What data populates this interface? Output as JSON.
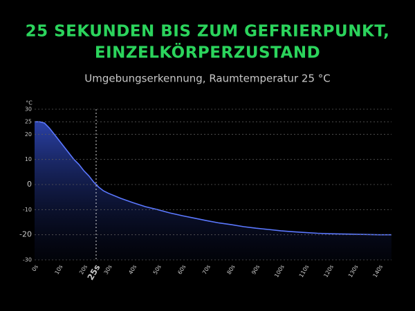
{
  "chart_data": {
    "type": "area",
    "title": [
      "25 SEKUNDEN BIS ZUM GEFRIERPUNKT,",
      "EINZELKÖRPERZUSTAND"
    ],
    "subtitle": "Umgebungserkennung, Raumtemperatur 25 °C",
    "y_label": "°C",
    "x": [
      0,
      2,
      4,
      6,
      8,
      10,
      12,
      14,
      16,
      18,
      20,
      22,
      24,
      25,
      26,
      28,
      30,
      35,
      40,
      45,
      50,
      55,
      60,
      65,
      70,
      75,
      80,
      85,
      90,
      95,
      100,
      105,
      110,
      115,
      120,
      125,
      130,
      135,
      140,
      145
    ],
    "values": [
      25,
      25,
      24.5,
      22.5,
      20,
      17.5,
      15,
      12.5,
      10,
      8,
      5.5,
      3.5,
      1,
      0,
      -1,
      -2.5,
      -3.5,
      -5.5,
      -7.2,
      -8.8,
      -10,
      -11.3,
      -12.4,
      -13.4,
      -14.4,
      -15.3,
      -16,
      -16.8,
      -17.4,
      -17.9,
      -18.4,
      -18.8,
      -19.1,
      -19.4,
      -19.6,
      -19.7,
      -19.8,
      -19.9,
      -20,
      -20
    ],
    "color": "#5b78ff",
    "xlim": [
      0,
      145
    ],
    "ylim": [
      -30,
      30
    ],
    "yticks": [
      30,
      25,
      20,
      10,
      0,
      -10,
      -20,
      -30
    ],
    "xticks": [
      {
        "value": 0,
        "label": "0s"
      },
      {
        "value": 10,
        "label": "10s"
      },
      {
        "value": 20,
        "label": "20s"
      },
      {
        "value": 25,
        "label": "25s"
      },
      {
        "value": 30,
        "label": "30s"
      },
      {
        "value": 40,
        "label": "40s"
      },
      {
        "value": 50,
        "label": "50s"
      },
      {
        "value": 60,
        "label": "60s"
      },
      {
        "value": 70,
        "label": "70s"
      },
      {
        "value": 80,
        "label": "80s"
      },
      {
        "value": 90,
        "label": "90s"
      },
      {
        "value": 100,
        "label": "100s"
      },
      {
        "value": 110,
        "label": "110s"
      },
      {
        "value": 120,
        "label": "120s"
      },
      {
        "value": 130,
        "label": "130s"
      },
      {
        "value": 140,
        "label": "140s"
      }
    ],
    "reference_x": 25,
    "highlight_yticks": [
      0,
      -20
    ],
    "highlight_color": "#6f8dff",
    "grid": true
  }
}
